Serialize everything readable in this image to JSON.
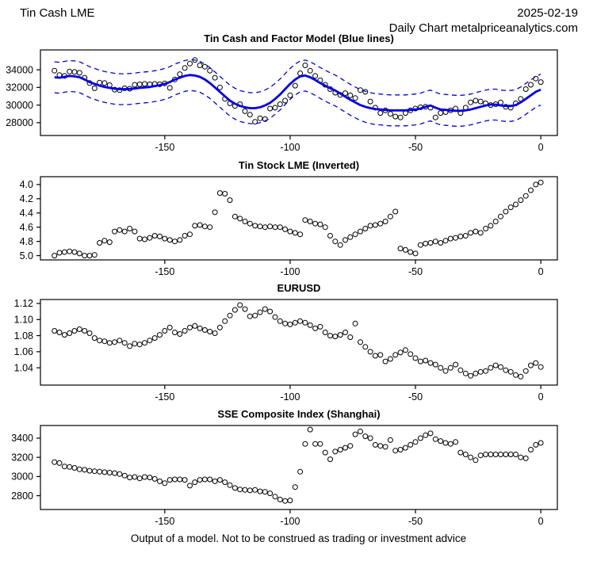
{
  "header": {
    "instrument": "Tin Cash LME",
    "date": "2025-02-19",
    "subtitle": "Daily Chart metalpriceanalytics.com"
  },
  "footer": {
    "disclaimer": "Output of a model. Not to be construed as trading or investment advice"
  },
  "colors": {
    "model_blue": "#0000ee",
    "points_black": "#000000",
    "axis_black": "#000000"
  },
  "chart_data": [
    {
      "type": "scatter",
      "title": "Tin Cash and Factor Model (Blue lines)",
      "xlabel": "",
      "ylabel": "",
      "xlim": [
        -199.6,
        6.6
      ],
      "ylim": [
        26550,
        36250
      ],
      "inverted": false,
      "grid": false,
      "x_ticks": [
        -150,
        -100,
        -50,
        0
      ],
      "x_tick_labels": [
        "-150",
        "-100",
        "-50",
        "0"
      ],
      "y_ticks": [
        28000,
        30000,
        32000,
        34000
      ],
      "y_tick_labels": [
        "28000",
        "30000",
        "32000",
        "34000"
      ],
      "series": [
        {
          "name": "tin-cash-points",
          "style": "points",
          "color": "#000000",
          "x_start": -194,
          "x_step": 2,
          "values": [
            33900,
            33400,
            33300,
            33800,
            33750,
            33650,
            33100,
            32500,
            31900,
            32550,
            32500,
            32250,
            31750,
            31700,
            31900,
            31850,
            32300,
            32350,
            32400,
            32350,
            32400,
            32350,
            32450,
            31950,
            32900,
            33500,
            34200,
            34700,
            35100,
            34500,
            34350,
            33900,
            33100,
            32000,
            30700,
            30200,
            29900,
            30100,
            29300,
            28900,
            28100,
            28500,
            28400,
            29600,
            29700,
            30100,
            30500,
            31100,
            32200,
            33600,
            34500,
            33900,
            33300,
            32800,
            32300,
            31800,
            31400,
            31150,
            31350,
            31100,
            30800,
            31700,
            31500,
            30400,
            29700,
            29100,
            29400,
            29000,
            28700,
            28600,
            29100,
            29400,
            29600,
            29750,
            29800,
            29700,
            28600,
            29100,
            29200,
            29400,
            29600,
            29100,
            29700,
            30300,
            30500,
            30400,
            30200,
            30000,
            30100,
            30300,
            29800,
            29700,
            30200,
            30700,
            31800,
            32300,
            33000,
            32600
          ]
        },
        {
          "name": "factor-model-line",
          "style": "line",
          "color": "#0000ee",
          "width": 2.8,
          "band_offset": 1750,
          "band_style": "dashed",
          "x_start": -194,
          "x_step": 2,
          "values": [
            33150,
            33100,
            33200,
            33300,
            33250,
            33150,
            32900,
            32600,
            32400,
            32200,
            32050,
            31950,
            31850,
            31800,
            31800,
            31820,
            31880,
            31950,
            32000,
            32050,
            32150,
            32250,
            32400,
            32600,
            32900,
            33100,
            33300,
            33400,
            33350,
            33200,
            32900,
            32500,
            32000,
            31500,
            31000,
            30500,
            30150,
            29900,
            29750,
            29650,
            29650,
            29750,
            29950,
            30250,
            30700,
            31200,
            31800,
            32400,
            32900,
            33250,
            33350,
            33150,
            32850,
            32500,
            32200,
            31900,
            31650,
            31300,
            30950,
            30600,
            30300,
            30000,
            29800,
            29650,
            29550,
            29500,
            29450,
            29400,
            29400,
            29400,
            29400,
            29450,
            29500,
            29600,
            29800,
            29950,
            29700,
            29500,
            29450,
            29400,
            29350,
            29350,
            29400,
            29500,
            29650,
            29800,
            29950,
            30050,
            30050,
            29950,
            29900,
            29900,
            30000,
            30300,
            30700,
            31100,
            31500,
            31750
          ]
        }
      ]
    },
    {
      "type": "scatter",
      "title": "Tin Stock LME (Inverted)",
      "xlabel": "",
      "ylabel": "",
      "xlim": [
        -199.6,
        6.6
      ],
      "ylim": [
        3.89,
        5.06
      ],
      "inverted": true,
      "grid": false,
      "x_ticks": [
        -150,
        -100,
        -50,
        0
      ],
      "x_tick_labels": [
        "-150",
        "-100",
        "-50",
        "0"
      ],
      "y_ticks": [
        4.0,
        4.2,
        4.4,
        4.6,
        4.8,
        5.0
      ],
      "y_tick_labels": [
        "4.0",
        "4.2",
        "4.4",
        "4.6",
        "4.8",
        "5.0"
      ],
      "series": [
        {
          "name": "tin-stock-points",
          "style": "points",
          "color": "#000000",
          "x_start": -194,
          "x_step": 2,
          "values": [
            5.0,
            4.96,
            4.95,
            4.94,
            4.95,
            4.97,
            5.0,
            5.0,
            4.99,
            4.82,
            4.79,
            4.81,
            4.66,
            4.64,
            4.66,
            4.62,
            4.66,
            4.76,
            4.77,
            4.75,
            4.72,
            4.73,
            4.76,
            4.78,
            4.8,
            4.78,
            4.72,
            4.7,
            4.58,
            4.57,
            4.59,
            4.6,
            4.39,
            4.12,
            4.13,
            4.22,
            4.45,
            4.48,
            4.52,
            4.55,
            4.58,
            4.59,
            4.6,
            4.59,
            4.6,
            4.6,
            4.63,
            4.66,
            4.68,
            4.7,
            4.5,
            4.52,
            4.55,
            4.56,
            4.6,
            4.72,
            4.8,
            4.85,
            4.78,
            4.74,
            4.7,
            4.66,
            4.62,
            4.58,
            4.57,
            4.55,
            4.52,
            4.45,
            4.38,
            4.9,
            4.92,
            4.95,
            4.97,
            4.85,
            4.83,
            4.82,
            4.8,
            4.82,
            4.79,
            4.76,
            4.75,
            4.73,
            4.72,
            4.68,
            4.66,
            4.68,
            4.62,
            4.58,
            4.52,
            4.45,
            4.38,
            4.32,
            4.28,
            4.22,
            4.16,
            4.08,
            4.0,
            3.97
          ]
        }
      ]
    },
    {
      "type": "scatter",
      "title": "EURUSD",
      "xlabel": "",
      "ylabel": "",
      "xlim": [
        -199.6,
        6.6
      ],
      "ylim": [
        1.0185,
        1.1249
      ],
      "inverted": false,
      "grid": false,
      "x_ticks": [
        -150,
        -100,
        -50,
        0
      ],
      "x_tick_labels": [
        "-150",
        "-100",
        "-50",
        "0"
      ],
      "y_ticks": [
        1.04,
        1.06,
        1.08,
        1.1,
        1.12
      ],
      "y_tick_labels": [
        "1.04",
        "1.06",
        "1.08",
        "1.10",
        "1.12"
      ],
      "series": [
        {
          "name": "eurusd-points",
          "style": "points",
          "color": "#000000",
          "x_start": -194,
          "x_step": 2,
          "values": [
            1.086,
            1.084,
            1.081,
            1.083,
            1.086,
            1.088,
            1.086,
            1.083,
            1.077,
            1.074,
            1.073,
            1.071,
            1.072,
            1.074,
            1.071,
            1.067,
            1.07,
            1.069,
            1.071,
            1.074,
            1.077,
            1.081,
            1.086,
            1.09,
            1.084,
            1.082,
            1.086,
            1.09,
            1.092,
            1.089,
            1.087,
            1.085,
            1.083,
            1.09,
            1.098,
            1.105,
            1.112,
            1.118,
            1.113,
            1.104,
            1.105,
            1.109,
            1.113,
            1.11,
            1.103,
            1.098,
            1.095,
            1.094,
            1.096,
            1.098,
            1.096,
            1.093,
            1.089,
            1.091,
            1.084,
            1.08,
            1.079,
            1.081,
            1.084,
            1.078,
            1.095,
            1.072,
            1.066,
            1.06,
            1.055,
            1.056,
            1.048,
            1.051,
            1.056,
            1.059,
            1.062,
            1.057,
            1.052,
            1.048,
            1.049,
            1.046,
            1.044,
            1.04,
            1.036,
            1.04,
            1.044,
            1.037,
            1.033,
            1.03,
            1.033,
            1.035,
            1.036,
            1.04,
            1.043,
            1.041,
            1.037,
            1.035,
            1.031,
            1.029,
            1.036,
            1.043,
            1.046,
            1.041
          ]
        }
      ]
    },
    {
      "type": "scatter",
      "title": "SSE Composite Index (Shanghai)",
      "xlabel": "",
      "ylabel": "",
      "xlim": [
        -199.6,
        6.6
      ],
      "ylim": [
        2656,
        3532
      ],
      "inverted": false,
      "grid": false,
      "x_ticks": [
        -150,
        -100,
        -50,
        0
      ],
      "x_tick_labels": [
        "-150",
        "-100",
        "-50",
        "0"
      ],
      "y_ticks": [
        2800,
        3000,
        3200,
        3400
      ],
      "y_tick_labels": [
        "2800",
        "3000",
        "3200",
        "3400"
      ],
      "series": [
        {
          "name": "sse-points",
          "style": "points",
          "color": "#000000",
          "x_start": -194,
          "x_step": 2,
          "values": [
            3150,
            3140,
            3105,
            3100,
            3090,
            3075,
            3070,
            3060,
            3055,
            3050,
            3045,
            3040,
            3035,
            3025,
            3010,
            2990,
            2995,
            2980,
            2995,
            2990,
            2975,
            2950,
            2930,
            2965,
            2970,
            2970,
            2965,
            2905,
            2940,
            2965,
            2970,
            2970,
            2950,
            2965,
            2940,
            2910,
            2880,
            2865,
            2860,
            2855,
            2860,
            2845,
            2840,
            2825,
            2790,
            2760,
            2745,
            2750,
            2890,
            3050,
            3340,
            3490,
            3340,
            3340,
            3250,
            3180,
            3260,
            3280,
            3300,
            3320,
            3440,
            3470,
            3420,
            3400,
            3330,
            3320,
            3310,
            3380,
            3270,
            3280,
            3300,
            3330,
            3360,
            3400,
            3430,
            3450,
            3390,
            3370,
            3350,
            3340,
            3360,
            3250,
            3230,
            3200,
            3170,
            3220,
            3230,
            3230,
            3230,
            3230,
            3230,
            3230,
            3230,
            3200,
            3190,
            3280,
            3330,
            3350
          ]
        }
      ]
    }
  ]
}
